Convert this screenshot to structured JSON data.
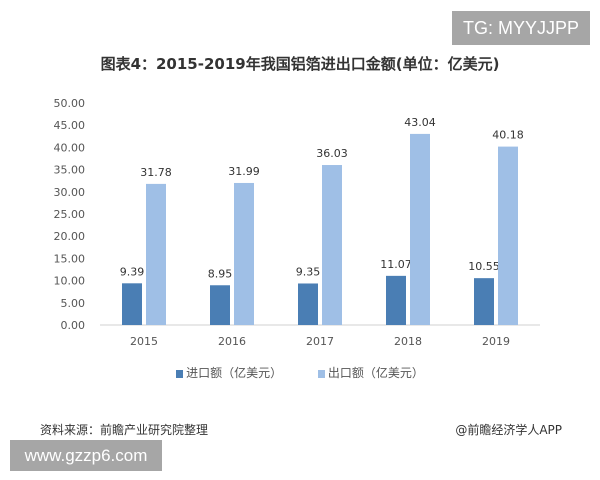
{
  "watermark_top": "TG: MYYJJPP",
  "watermark_bottom": "www.gzzp6.com",
  "source": "资料来源：前瞻产业研究院整理",
  "credit": "@前瞻经济学人APP",
  "chart_data": {
    "type": "bar",
    "title": "图表4：2015-2019年我国铝箔进出口金额(单位：亿美元)",
    "categories": [
      "2015",
      "2016",
      "2017",
      "2018",
      "2019"
    ],
    "series": [
      {
        "name": "进口额（亿美元）",
        "values": [
          9.39,
          8.95,
          9.35,
          11.07,
          10.55
        ],
        "color": "#4a7eb4"
      },
      {
        "name": "出口额（亿美元）",
        "values": [
          31.78,
          31.99,
          36.03,
          43.04,
          40.18
        ],
        "color": "#9fbfe6"
      }
    ],
    "ylim": [
      0,
      50
    ],
    "yticks": [
      "0.00",
      "5.00",
      "10.00",
      "15.00",
      "20.00",
      "25.00",
      "30.00",
      "35.00",
      "40.00",
      "45.00",
      "50.00"
    ],
    "legend": "bottom",
    "grid": false
  }
}
